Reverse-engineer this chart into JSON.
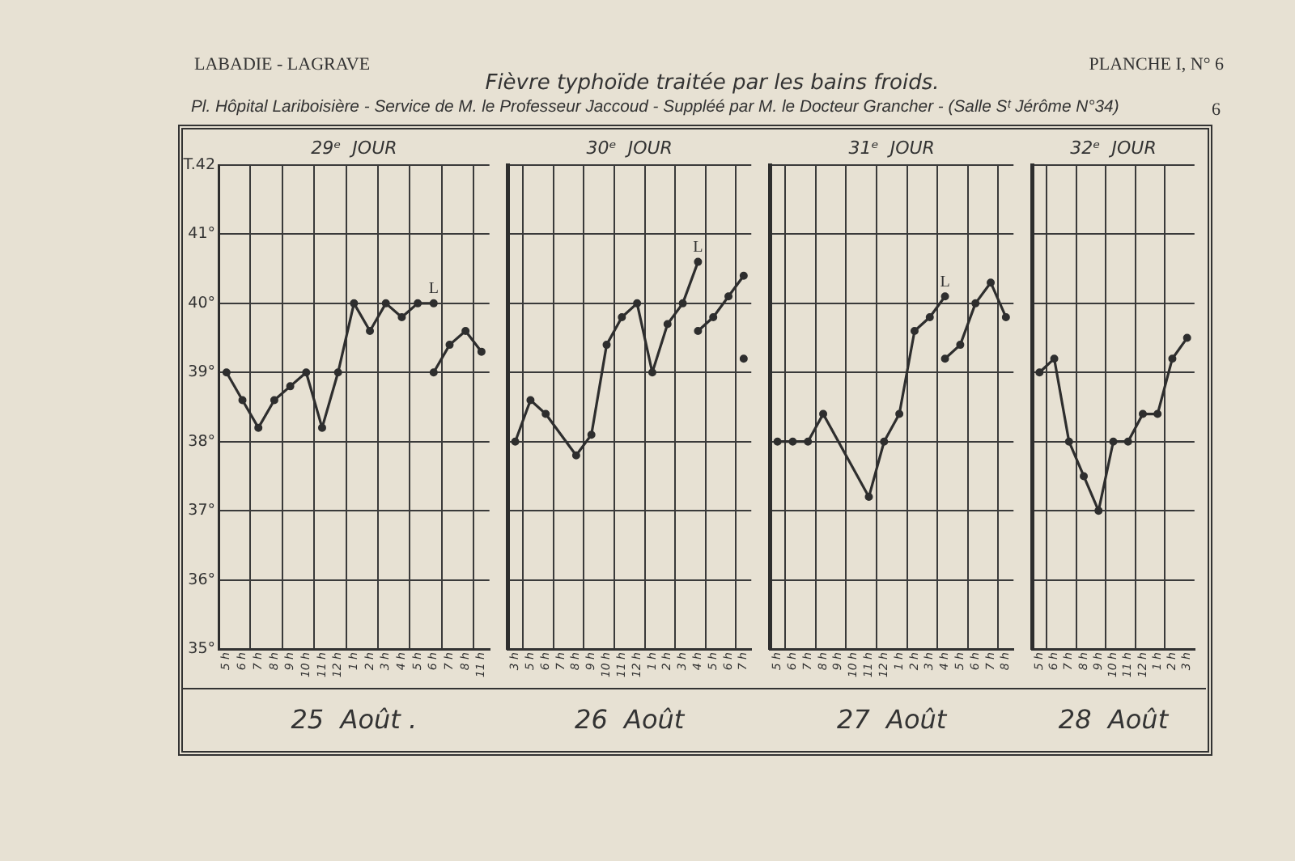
{
  "chart_data": [
    {
      "type": "line",
      "annotations": [
        "LABADIE - LAGRAVE"
      ],
      "x2label": "29ᵉ  JOUR",
      "xlabel": "25  Août .",
      "categories": [
        "5 h",
        "6 h",
        "7 h",
        "8 h",
        "9 h",
        "10 h",
        "11 h",
        "12 h",
        "1 h",
        "2 h",
        "3 h",
        "4 h",
        "5 h",
        "6 h",
        "7 h",
        "8 h",
        "11 h"
      ],
      "series": [
        {
          "color": "#2e2e2e",
          "values": [
            39.0,
            38.6,
            38.2,
            38.6,
            38.8,
            39.0,
            38.2,
            39.0,
            40.0,
            39.6,
            40.0,
            39.8,
            40.0,
            40.0,
            null,
            null,
            null
          ],
          "value_labels": [
            null,
            null,
            null,
            null,
            null,
            null,
            null,
            null,
            null,
            null,
            null,
            null,
            null,
            "L",
            null,
            null,
            null
          ]
        },
        {
          "color": "#2e2e2e",
          "values": [
            null,
            null,
            null,
            null,
            null,
            null,
            null,
            null,
            null,
            null,
            null,
            null,
            null,
            39.0,
            39.4,
            39.6,
            39.3
          ]
        }
      ],
      "marker": "circle",
      "line_style": "solid",
      "grid": true,
      "ylim": [
        35,
        42
      ],
      "yticks": [
        {
          "value": 35,
          "label": "35°"
        },
        {
          "value": 36,
          "label": "36°"
        },
        {
          "value": 37,
          "label": "37°"
        },
        {
          "value": 38,
          "label": "38°"
        },
        {
          "value": 39,
          "label": "39°"
        },
        {
          "value": 40,
          "label": "40°"
        },
        {
          "value": 41,
          "label": "41°"
        },
        {
          "value": 42,
          "label": "T.42"
        }
      ]
    },
    {
      "type": "line",
      "title": "Fièvre typhoïde traitée par les bains froids.",
      "subtitle": "Pl.  Hôpital Lariboisière - Service de M. le Professeur Jaccoud - Suppléé par M. le Docteur Grancher - (Salle Sᵗ Jérôme N°34)",
      "x2label": "30ᵉ  JOUR",
      "xlabel": "26  Août",
      "categories": [
        "3 h",
        "5 h",
        "6 h",
        "7 h",
        "8 h",
        "9 h",
        "10 h",
        "11 h",
        "12 h",
        "1 h",
        "2 h",
        "3 h",
        "4 h",
        "5 h",
        "6 h",
        "7 h"
      ],
      "series": [
        {
          "color": "#2e2e2e",
          "values": [
            38.0,
            38.6,
            38.4,
            null,
            37.8,
            38.1,
            39.4,
            39.8,
            40.0,
            39.0,
            39.7,
            40.0,
            40.6,
            null,
            null,
            null
          ],
          "value_labels": [
            null,
            null,
            null,
            null,
            null,
            null,
            null,
            null,
            null,
            null,
            null,
            null,
            "L",
            null,
            null,
            null
          ]
        },
        {
          "color": "#2e2e2e",
          "values": [
            null,
            null,
            null,
            null,
            null,
            null,
            null,
            null,
            null,
            null,
            null,
            null,
            39.6,
            39.8,
            40.1,
            40.4
          ]
        },
        {
          "color": "#2e2e2e",
          "values": [
            null,
            null,
            null,
            null,
            null,
            null,
            null,
            null,
            null,
            null,
            null,
            null,
            null,
            null,
            null,
            39.2
          ]
        }
      ],
      "marker": "circle",
      "line_style": "solid",
      "grid": true,
      "tick_labels": "x",
      "ylim": [
        35,
        42
      ],
      "yticks": [
        35,
        36,
        37,
        38,
        39,
        40,
        41,
        42
      ]
    },
    {
      "type": "line",
      "x2label": "31ᵉ  JOUR",
      "xlabel": "27  Août",
      "categories": [
        "5 h",
        "6 h",
        "7 h",
        "8 h",
        "9 h",
        "10 h",
        "11 h",
        "12 h",
        "1 h",
        "2 h",
        "3 h",
        "4 h",
        "5 h",
        "6 h",
        "7 h",
        "8 h"
      ],
      "series": [
        {
          "color": "#2e2e2e",
          "values": [
            38.0,
            38.0,
            38.0,
            38.4,
            null,
            null,
            37.2,
            38.0,
            38.4,
            39.6,
            39.8,
            40.1,
            null,
            null,
            null,
            null
          ],
          "value_labels": [
            null,
            null,
            null,
            null,
            null,
            null,
            null,
            null,
            null,
            null,
            null,
            "L",
            null,
            null,
            null,
            null
          ]
        },
        {
          "color": "#2e2e2e",
          "values": [
            null,
            null,
            null,
            null,
            null,
            null,
            null,
            null,
            null,
            null,
            null,
            39.2,
            39.4,
            40.0,
            40.3,
            39.8
          ]
        }
      ],
      "marker": "circle",
      "line_style": "solid",
      "grid": true,
      "tick_labels": "x",
      "ylim": [
        35,
        42
      ],
      "yticks": [
        35,
        36,
        37,
        38,
        39,
        40,
        41,
        42
      ]
    },
    {
      "type": "line",
      "annotations": [
        "PLANCHE I, N° 6",
        "6"
      ],
      "x2label": "32ᵉ  JOUR",
      "xlabel": "28  Août",
      "categories": [
        "5 h",
        "6 h",
        "7 h",
        "8 h",
        "9 h",
        "10 h",
        "11 h",
        "12 h",
        "1 h",
        "2 h",
        "3 h"
      ],
      "series": [
        {
          "color": "#2e2e2e",
          "values": [
            39.0,
            39.2,
            38.0,
            37.5,
            37.0,
            38.0,
            38.0,
            38.4,
            38.4,
            39.2,
            39.5
          ]
        }
      ],
      "marker": "circle",
      "line_style": "solid",
      "grid": true,
      "tick_labels": "x",
      "ylim": [
        35,
        42
      ],
      "yticks": [
        35,
        36,
        37,
        38,
        39,
        40,
        41,
        42
      ]
    }
  ]
}
